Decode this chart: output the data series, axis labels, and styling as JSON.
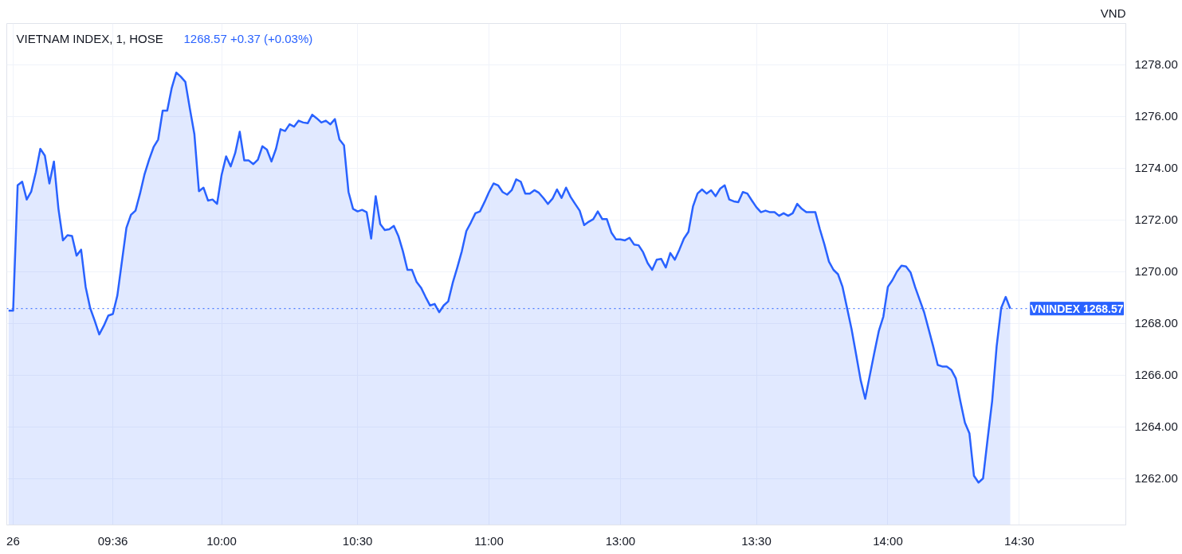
{
  "chart_data": {
    "type": "area",
    "title": "VIETNAM INDEX, 1, HOSE",
    "subtitle": "1268.57 +0.37 (+0.03%)",
    "ylabel": "VND",
    "categories": [
      null,
      "26",
      null,
      null,
      null,
      null,
      null,
      null,
      null,
      null,
      null,
      null,
      null,
      null,
      null,
      null,
      null,
      null,
      null,
      null,
      null,
      null,
      null,
      "09:36",
      null,
      null,
      null,
      null,
      null,
      null,
      null,
      null,
      null,
      null,
      null,
      null,
      null,
      null,
      null,
      null,
      null,
      null,
      null,
      null,
      null,
      null,
      null,
      "10:00",
      null,
      null,
      null,
      null,
      null,
      null,
      null,
      null,
      null,
      null,
      null,
      null,
      null,
      null,
      null,
      null,
      null,
      null,
      null,
      null,
      null,
      null,
      null,
      null,
      null,
      null,
      null,
      null,
      null,
      "10:30",
      null,
      null,
      null,
      null,
      null,
      null,
      null,
      null,
      null,
      null,
      null,
      null,
      null,
      null,
      null,
      null,
      null,
      null,
      null,
      null,
      null,
      null,
      null,
      null,
      null,
      null,
      null,
      null,
      "11:00",
      null,
      null,
      null,
      null,
      null,
      null,
      null,
      null,
      null,
      null,
      null,
      null,
      null,
      null,
      null,
      null,
      null,
      null,
      null,
      null,
      null,
      null,
      null,
      null,
      null,
      null,
      null,
      null,
      "13:00",
      null,
      null,
      null,
      null,
      null,
      null,
      null,
      null,
      null,
      null,
      null,
      null,
      null,
      null,
      null,
      null,
      null,
      null,
      null,
      null,
      null,
      null,
      null,
      null,
      null,
      null,
      null,
      null,
      null,
      "13:30",
      null,
      null,
      null,
      null,
      null,
      null,
      null,
      null,
      null,
      null,
      null,
      null,
      null,
      null,
      null,
      null,
      null,
      null,
      null,
      null,
      null,
      null,
      null,
      null,
      null,
      null,
      null,
      null,
      "14:00",
      null,
      null,
      null,
      null,
      null,
      null,
      null,
      null,
      null,
      null,
      null,
      null,
      null,
      null,
      null,
      null,
      null,
      null,
      null,
      null,
      null,
      null,
      null,
      null,
      null,
      null,
      null,
      null,
      "14:30",
      null,
      null,
      null,
      null,
      null,
      null,
      null,
      null,
      null,
      null,
      null,
      null,
      null,
      null,
      null,
      null,
      null,
      null,
      null,
      null,
      null,
      null,
      null
    ],
    "series": [
      {
        "color": "#2962ff",
        "values": [
          1268.49,
          1268.49,
          1273.34,
          1273.48,
          1272.79,
          1273.1,
          1273.84,
          1274.75,
          1274.49,
          1273.41,
          1274.26,
          1272.43,
          1271.21,
          1271.41,
          1271.38,
          1270.62,
          1270.85,
          1269.41,
          1268.59,
          1268.1,
          1267.57,
          1267.9,
          1268.3,
          1268.36,
          1269.08,
          1270.39,
          1271.7,
          1272.2,
          1272.36,
          1273.02,
          1273.77,
          1274.33,
          1274.82,
          1275.11,
          1276.23,
          1276.23,
          1277.11,
          1277.7,
          1277.54,
          1277.34,
          1276.3,
          1275.31,
          1273.11,
          1273.25,
          1272.75,
          1272.79,
          1272.62,
          1273.74,
          1274.46,
          1274.07,
          1274.59,
          1275.41,
          1274.3,
          1274.3,
          1274.16,
          1274.33,
          1274.85,
          1274.72,
          1274.26,
          1274.75,
          1275.51,
          1275.44,
          1275.7,
          1275.61,
          1275.84,
          1275.77,
          1275.74,
          1276.07,
          1275.93,
          1275.77,
          1275.84,
          1275.7,
          1275.9,
          1275.11,
          1274.89,
          1273.08,
          1272.43,
          1272.33,
          1272.39,
          1272.3,
          1271.28,
          1272.92,
          1271.84,
          1271.61,
          1271.64,
          1271.77,
          1271.38,
          1270.79,
          1270.07,
          1270.07,
          1269.61,
          1269.38,
          1269.02,
          1268.69,
          1268.75,
          1268.43,
          1268.69,
          1268.85,
          1269.57,
          1270.16,
          1270.79,
          1271.57,
          1271.9,
          1272.26,
          1272.33,
          1272.69,
          1273.08,
          1273.41,
          1273.34,
          1273.08,
          1272.98,
          1273.15,
          1273.57,
          1273.48,
          1273.02,
          1273.02,
          1273.15,
          1273.05,
          1272.85,
          1272.62,
          1272.82,
          1273.18,
          1272.85,
          1273.25,
          1272.89,
          1272.62,
          1272.36,
          1271.8,
          1271.93,
          1272.03,
          1272.33,
          1272.03,
          1272.03,
          1271.51,
          1271.25,
          1271.25,
          1271.21,
          1271.31,
          1271.05,
          1271.02,
          1270.75,
          1270.33,
          1270.07,
          1270.46,
          1270.49,
          1270.16,
          1270.72,
          1270.46,
          1270.85,
          1271.28,
          1271.54,
          1272.52,
          1273.02,
          1273.18,
          1273.02,
          1273.15,
          1272.92,
          1273.21,
          1273.34,
          1272.79,
          1272.72,
          1272.69,
          1273.08,
          1273.02,
          1272.75,
          1272.49,
          1272.3,
          1272.36,
          1272.3,
          1272.3,
          1272.16,
          1272.26,
          1272.16,
          1272.26,
          1272.62,
          1272.43,
          1272.3,
          1272.3,
          1272.3,
          1271.64,
          1271.05,
          1270.39,
          1270.07,
          1269.9,
          1269.41,
          1268.59,
          1267.77,
          1266.79,
          1265.8,
          1265.08,
          1265.97,
          1266.85,
          1267.7,
          1268.26,
          1269.41,
          1269.67,
          1270,
          1270.23,
          1270.2,
          1269.97,
          1269.41,
          1268.92,
          1268.43,
          1267.77,
          1267.11,
          1266.39,
          1266.33,
          1266.33,
          1266.2,
          1265.87,
          1264.98,
          1264.16,
          1263.74,
          1262.1,
          1261.84,
          1262,
          1263.51,
          1264.98,
          1267.11,
          1268.59,
          1269.02,
          1268.57,
          null,
          null,
          null,
          null,
          null,
          null,
          null,
          null,
          null,
          null,
          null,
          null,
          null,
          null,
          null,
          null,
          null,
          null,
          null,
          null,
          null,
          null,
          null,
          null,
          null
        ]
      }
    ],
    "ylim": [
      1260.2,
      1279.6
    ],
    "yticks": [
      {
        "value": 1262,
        "label": "1262.00"
      },
      {
        "value": 1264,
        "label": "1264.00"
      },
      {
        "value": 1266,
        "label": "1266.00"
      },
      {
        "value": 1268,
        "label": "1268.00"
      },
      {
        "value": 1270,
        "label": "1270.00"
      },
      {
        "value": 1272,
        "label": "1272.00"
      },
      {
        "value": 1274,
        "label": "1274.00"
      },
      {
        "value": 1276,
        "label": "1276.00"
      },
      {
        "value": 1278,
        "label": "1278.00"
      }
    ],
    "ref_lines": [
      {
        "axis": "y",
        "value": 1268.57,
        "label": "VNINDEX 1268.57",
        "color": "#2962ff",
        "line_style": "dotted"
      }
    ],
    "grid": true,
    "marker": "none",
    "line_style": "solid"
  }
}
